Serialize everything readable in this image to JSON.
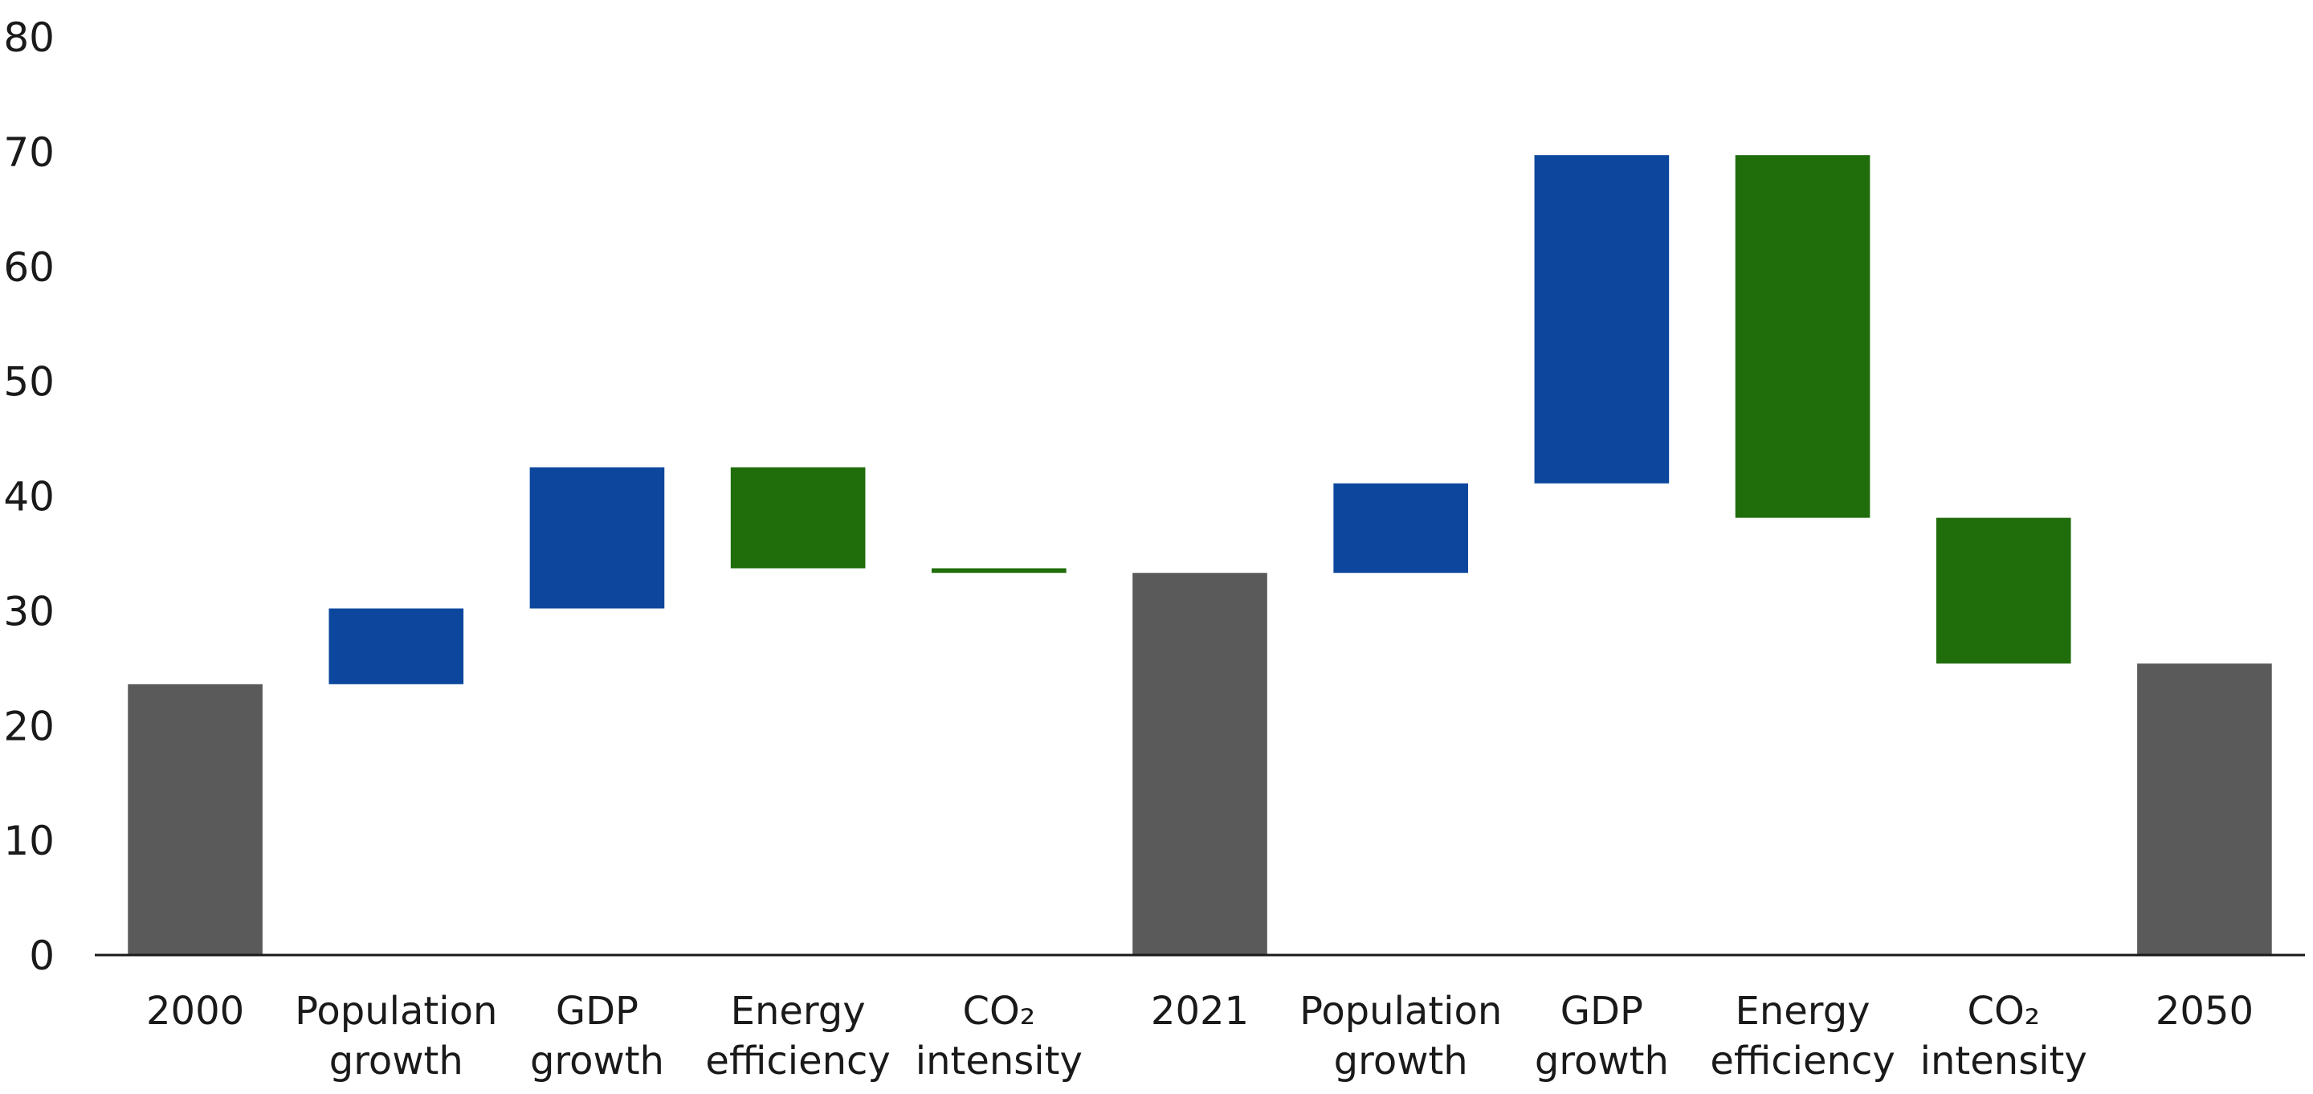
{
  "chart_data": {
    "type": "bar",
    "subtype": "waterfall",
    "ylim": [
      0,
      80
    ],
    "yticks": [
      0,
      10,
      20,
      30,
      40,
      50,
      60,
      70,
      80
    ],
    "grid": false,
    "categories": [
      {
        "lines": [
          "2000"
        ]
      },
      {
        "lines": [
          "Population",
          "growth"
        ]
      },
      {
        "lines": [
          "GDP",
          "growth"
        ]
      },
      {
        "lines": [
          "Energy",
          "efficiency"
        ]
      },
      {
        "lines": [
          "CO₂",
          "intensity"
        ]
      },
      {
        "lines": [
          "2021"
        ]
      },
      {
        "lines": [
          "Population",
          "growth"
        ]
      },
      {
        "lines": [
          "GDP",
          "growth"
        ]
      },
      {
        "lines": [
          "Energy",
          "efficiency"
        ]
      },
      {
        "lines": [
          "CO₂",
          "intensity"
        ]
      },
      {
        "lines": [
          "2050"
        ]
      }
    ],
    "bars": [
      {
        "kind": "total",
        "low": 0,
        "high": 23.6
      },
      {
        "kind": "increase",
        "low": 23.6,
        "high": 30.2
      },
      {
        "kind": "increase",
        "low": 30.2,
        "high": 42.5
      },
      {
        "kind": "decrease",
        "low": 33.7,
        "high": 42.5
      },
      {
        "kind": "decrease",
        "low": 33.3,
        "high": 33.7
      },
      {
        "kind": "total",
        "low": 0,
        "high": 33.3
      },
      {
        "kind": "increase",
        "low": 33.3,
        "high": 41.1
      },
      {
        "kind": "increase",
        "low": 41.1,
        "high": 69.7
      },
      {
        "kind": "decrease",
        "low": 38.1,
        "high": 69.7
      },
      {
        "kind": "decrease",
        "low": 25.4,
        "high": 38.1
      },
      {
        "kind": "total",
        "low": 0,
        "high": 25.4
      }
    ],
    "colors": {
      "total": "#5a5a5a",
      "increase": "#0c479d",
      "decrease": "#1f6d0b",
      "axis": "#1a1a1a"
    }
  }
}
